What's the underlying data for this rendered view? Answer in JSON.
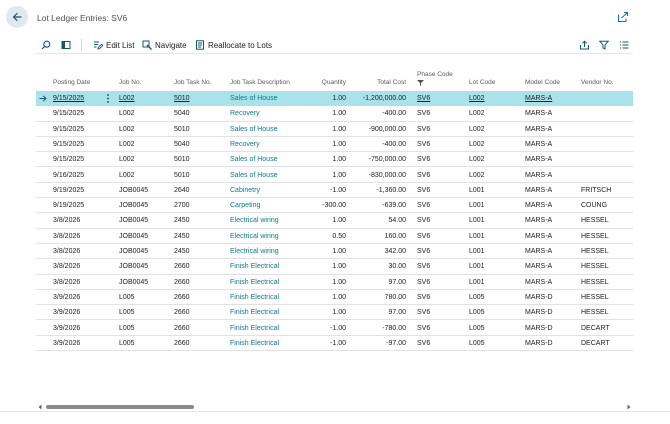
{
  "header": {
    "title": "Lot Ledger Entries: SV6",
    "back_icon": "arrow-left-icon",
    "popout_icon": "popout-icon"
  },
  "toolbar": {
    "search_icon": "search-icon",
    "view_icon": "view-layout-icon",
    "edit_list_label": "Edit List",
    "navigate_label": "Navigate",
    "reallocate_label": "Reallocate to Lots",
    "share_icon": "share-icon",
    "filter_icon": "filter-icon",
    "list_icon": "list-icon"
  },
  "colors": {
    "accent": "#0e7a8c",
    "selected_row": "#a9e2ea",
    "back_button_bg": "#e1e8f0"
  },
  "table": {
    "columns": {
      "posting_date": "Posting Date",
      "job_no": "Job No.",
      "job_task_no": "Job Task No.",
      "job_task_description": "Job Task Description",
      "quantity": "Quantity",
      "total_cost": "Total Cost",
      "phase_code": "Phase Code",
      "lot_code": "Lot Code",
      "model_code": "Model Code",
      "vendor_no": "Vendor No."
    },
    "phase_code_filter_icon": "filter-icon",
    "rows": [
      {
        "posting_date": "9/15/2025",
        "job_no": "L002",
        "job_task_no": "5010",
        "job_task_description": "Sales of House",
        "quantity": "1.00",
        "total_cost": "-1,200,000.00",
        "phase_code": "SV6",
        "lot_code": "L002",
        "model_code": "MARS-A",
        "vendor_no": ""
      },
      {
        "posting_date": "9/15/2025",
        "job_no": "L002",
        "job_task_no": "5040",
        "job_task_description": "Recovery",
        "quantity": "1.00",
        "total_cost": "-400.00",
        "phase_code": "SV6",
        "lot_code": "L002",
        "model_code": "MARS-A",
        "vendor_no": ""
      },
      {
        "posting_date": "9/15/2025",
        "job_no": "L002",
        "job_task_no": "5010",
        "job_task_description": "Sales of House",
        "quantity": "1.00",
        "total_cost": "-900,000.00",
        "phase_code": "SV6",
        "lot_code": "L002",
        "model_code": "MARS-A",
        "vendor_no": ""
      },
      {
        "posting_date": "9/15/2025",
        "job_no": "L002",
        "job_task_no": "5040",
        "job_task_description": "Recovery",
        "quantity": "1.00",
        "total_cost": "-400.00",
        "phase_code": "SV6",
        "lot_code": "L002",
        "model_code": "MARS-A",
        "vendor_no": ""
      },
      {
        "posting_date": "9/15/2025",
        "job_no": "L002",
        "job_task_no": "5010",
        "job_task_description": "Sales of House",
        "quantity": "1.00",
        "total_cost": "-750,000.00",
        "phase_code": "SV6",
        "lot_code": "L002",
        "model_code": "MARS-A",
        "vendor_no": ""
      },
      {
        "posting_date": "9/16/2025",
        "job_no": "L002",
        "job_task_no": "5010",
        "job_task_description": "Sales of House",
        "quantity": "1.00",
        "total_cost": "-830,000.00",
        "phase_code": "SV6",
        "lot_code": "L002",
        "model_code": "MARS-A",
        "vendor_no": ""
      },
      {
        "posting_date": "9/19/2025",
        "job_no": "JOB0045",
        "job_task_no": "2640",
        "job_task_description": "Cabinetry",
        "quantity": "-1.00",
        "total_cost": "-1,360.00",
        "phase_code": "SV6",
        "lot_code": "L001",
        "model_code": "MARS-A",
        "vendor_no": "FRITSCH"
      },
      {
        "posting_date": "9/19/2025",
        "job_no": "JOB0045",
        "job_task_no": "2700",
        "job_task_description": "Carpeting",
        "quantity": "-300.00",
        "total_cost": "-639.00",
        "phase_code": "SV6",
        "lot_code": "L001",
        "model_code": "MARS-A",
        "vendor_no": "COUNG"
      },
      {
        "posting_date": "3/8/2026",
        "job_no": "JOB0045",
        "job_task_no": "2450",
        "job_task_description": "Electrical wiring",
        "quantity": "1.00",
        "total_cost": "54.00",
        "phase_code": "SV6",
        "lot_code": "L001",
        "model_code": "MARS-A",
        "vendor_no": "HESSEL"
      },
      {
        "posting_date": "3/8/2026",
        "job_no": "JOB0045",
        "job_task_no": "2450",
        "job_task_description": "Electrical wiring",
        "quantity": "0.50",
        "total_cost": "160.00",
        "phase_code": "SV6",
        "lot_code": "L001",
        "model_code": "MARS-A",
        "vendor_no": "HESSEL"
      },
      {
        "posting_date": "3/8/2026",
        "job_no": "JOB0045",
        "job_task_no": "2450",
        "job_task_description": "Electrical wiring",
        "quantity": "1.00",
        "total_cost": "342.00",
        "phase_code": "SV6",
        "lot_code": "L001",
        "model_code": "MARS-A",
        "vendor_no": "HESSEL"
      },
      {
        "posting_date": "3/8/2026",
        "job_no": "JOB0045",
        "job_task_no": "2660",
        "job_task_description": "Finish Electrical",
        "quantity": "1.00",
        "total_cost": "30.00",
        "phase_code": "SV6",
        "lot_code": "L001",
        "model_code": "MARS-A",
        "vendor_no": "HESSEL"
      },
      {
        "posting_date": "3/8/2026",
        "job_no": "JOB0045",
        "job_task_no": "2660",
        "job_task_description": "Finish Electrical",
        "quantity": "1.00",
        "total_cost": "97.00",
        "phase_code": "SV6",
        "lot_code": "L001",
        "model_code": "MARS-A",
        "vendor_no": "HESSEL"
      },
      {
        "posting_date": "3/9/2026",
        "job_no": "L005",
        "job_task_no": "2660",
        "job_task_description": "Finish Electrical",
        "quantity": "1.00",
        "total_cost": "780.00",
        "phase_code": "SV6",
        "lot_code": "L005",
        "model_code": "MARS-D",
        "vendor_no": "HESSEL"
      },
      {
        "posting_date": "3/9/2026",
        "job_no": "L005",
        "job_task_no": "2660",
        "job_task_description": "Finish Electrical",
        "quantity": "1.00",
        "total_cost": "97.00",
        "phase_code": "SV6",
        "lot_code": "L005",
        "model_code": "MARS-D",
        "vendor_no": "HESSEL"
      },
      {
        "posting_date": "3/9/2026",
        "job_no": "L005",
        "job_task_no": "2660",
        "job_task_description": "Finish Electrical",
        "quantity": "-1.00",
        "total_cost": "-780.00",
        "phase_code": "SV6",
        "lot_code": "L005",
        "model_code": "MARS-D",
        "vendor_no": "DECART"
      },
      {
        "posting_date": "3/9/2026",
        "job_no": "L005",
        "job_task_no": "2660",
        "job_task_description": "Finish Electrical",
        "quantity": "-1.00",
        "total_cost": "-97.00",
        "phase_code": "SV6",
        "lot_code": "L005",
        "model_code": "MARS-D",
        "vendor_no": "DECART"
      }
    ],
    "selected_row_index": 0,
    "row_marker_icon": "arrow-right-icon",
    "row_menu_icon": "more-vertical-icon"
  },
  "scrollbar": {
    "left_arrow_icon": "chevron-left-icon",
    "right_arrow_icon": "chevron-right-icon"
  }
}
